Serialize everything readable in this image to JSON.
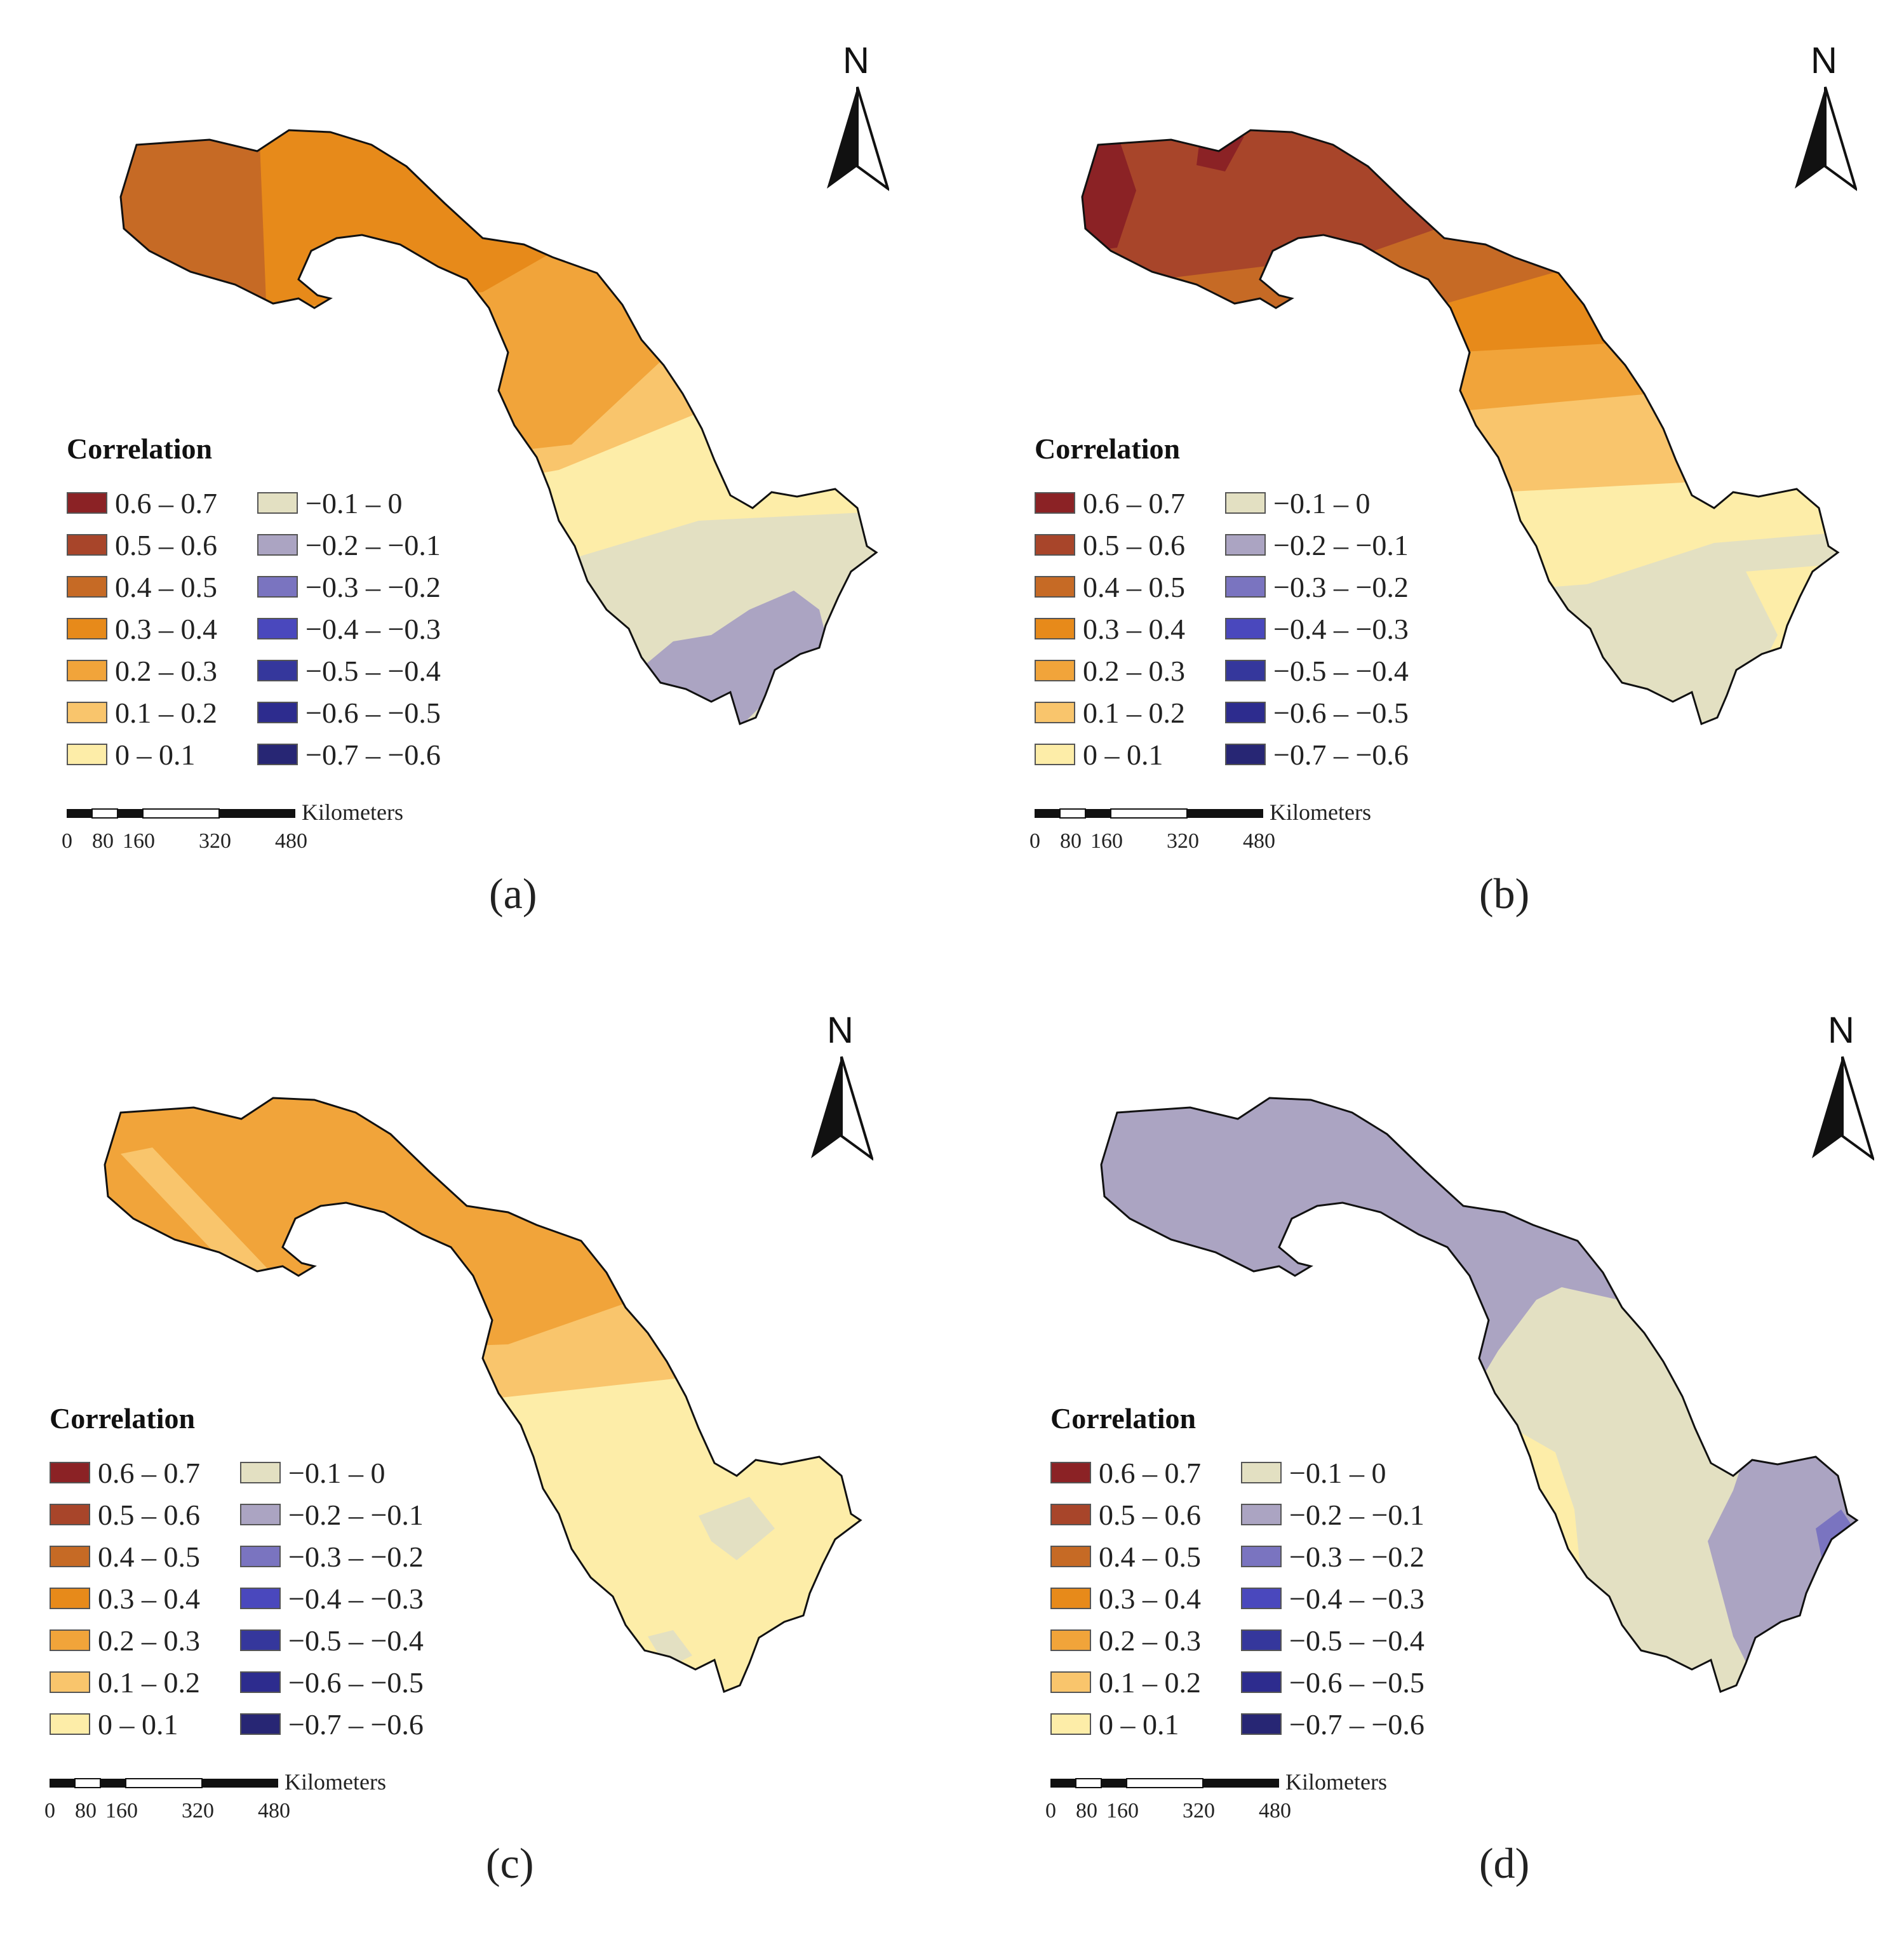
{
  "colors": {
    "c_0.6_0.7": "#8b2225",
    "c_0.5_0.6": "#a8452a",
    "c_0.4_0.5": "#c66a25",
    "c_0.3_0.4": "#e78a1a",
    "c_0.2_0.3": "#f1a43a",
    "c_0.1_0.2": "#f9c56c",
    "c_0_0.1": "#fdeda8",
    "c_-0.1_0": "#e3e0c2",
    "c_-0.2_-0.1": "#aba4c2",
    "c_-0.3_-0.2": "#7a74c0",
    "c_-0.4_-0.3": "#4a48bd",
    "c_-0.5_-0.4": "#35379c",
    "c_-0.6_-0.5": "#2d2c8e",
    "c_-0.7_-0.6": "#272674"
  },
  "legend": {
    "title": "Correlation",
    "left_column": [
      "0.6 – 0.7",
      "0.5 – 0.6",
      "0.4 – 0.5",
      "0.3 – 0.4",
      "0.2 – 0.3",
      "0.1 – 0.2",
      "0 – 0.1"
    ],
    "right_column": [
      "−0.1 – 0",
      "−0.2 – −0.1",
      "−0.3 – −0.2",
      "−0.4 – −0.3",
      "−0.5 – −0.4",
      "−0.6 – −0.5",
      "−0.7 – −0.6"
    ]
  },
  "scale": {
    "unit": "Kilometers",
    "ticks": [
      "0",
      "80",
      "160",
      "320",
      "480"
    ]
  },
  "north_label": "N",
  "panels": [
    {
      "caption": "(a)",
      "zones": [
        {
          "range": "0.4 – 0.5",
          "color": "#c66a25"
        },
        {
          "range": "0.3 – 0.4",
          "color": "#e78a1a"
        },
        {
          "range": "0.2 – 0.3",
          "color": "#f1a43a"
        },
        {
          "range": "0.1 – 0.2",
          "color": "#f9c56c"
        },
        {
          "range": "0 – 0.1",
          "color": "#fdeda8"
        },
        {
          "range": "−0.1 – 0",
          "color": "#e3e0c2"
        },
        {
          "range": "−0.2 – −0.1",
          "color": "#aba4c2"
        }
      ]
    },
    {
      "caption": "(b)",
      "zones": [
        {
          "range": "0.6 – 0.7",
          "color": "#8b2225"
        },
        {
          "range": "0.5 – 0.6",
          "color": "#a8452a"
        },
        {
          "range": "0.4 – 0.5",
          "color": "#c66a25"
        },
        {
          "range": "0.3 – 0.4",
          "color": "#e78a1a"
        },
        {
          "range": "0.2 – 0.3",
          "color": "#f1a43a"
        },
        {
          "range": "0.1 – 0.2",
          "color": "#f9c56c"
        },
        {
          "range": "0 – 0.1",
          "color": "#fdeda8"
        },
        {
          "range": "−0.1 – 0",
          "color": "#e3e0c2"
        }
      ]
    },
    {
      "caption": "(c)",
      "zones": [
        {
          "range": "0.2 – 0.3",
          "color": "#f1a43a"
        },
        {
          "range": "0.1 – 0.2",
          "color": "#f9c56c"
        },
        {
          "range": "0 – 0.1",
          "color": "#fdeda8"
        },
        {
          "range": "−0.1 – 0",
          "color": "#e3e0c2"
        }
      ]
    },
    {
      "caption": "(d)",
      "zones": [
        {
          "range": "−0.2 – −0.1",
          "color": "#aba4c2"
        },
        {
          "range": "−0.1 – 0",
          "color": "#e3e0c2"
        },
        {
          "range": "0 – 0.1",
          "color": "#fdeda8"
        },
        {
          "range": "−0.3 – −0.2",
          "color": "#7a74c0"
        }
      ]
    }
  ]
}
